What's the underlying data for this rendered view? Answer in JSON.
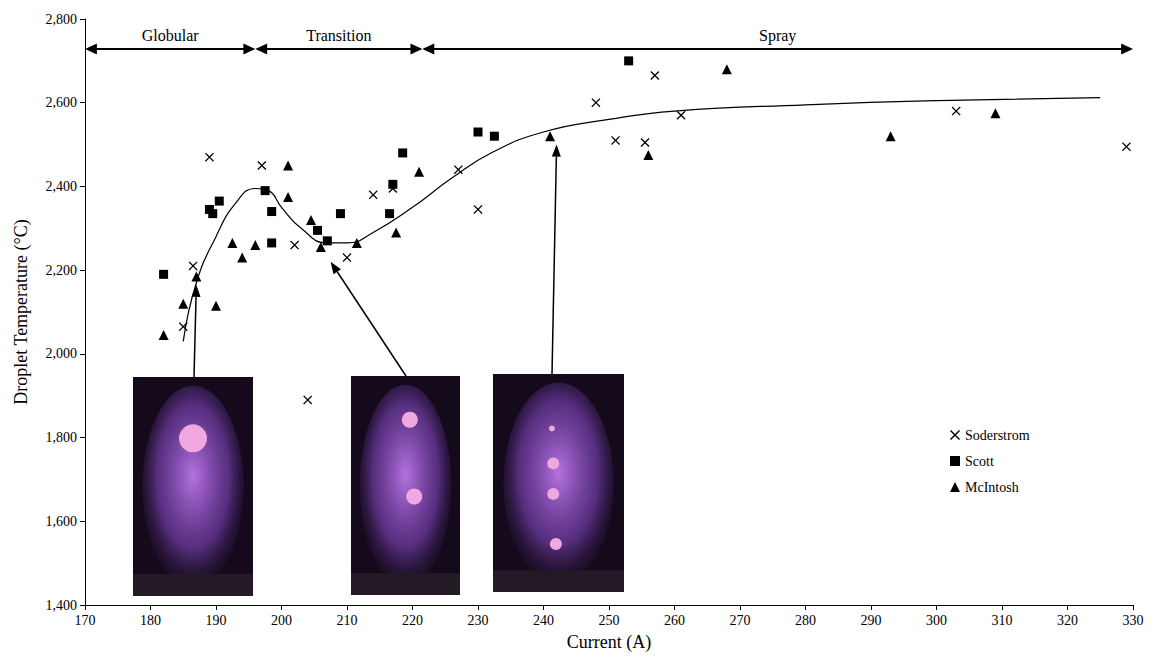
{
  "chart_data": {
    "type": "scatter",
    "x_label": "Current (A)",
    "y_label": "Droplet Temperature (°C)",
    "xlim": [
      170,
      330
    ],
    "xticks": [
      170,
      180,
      190,
      200,
      210,
      220,
      230,
      240,
      250,
      260,
      270,
      280,
      290,
      300,
      310,
      320,
      330
    ],
    "ylim": [
      1400,
      2800
    ],
    "yticks": [
      1400,
      1600,
      1800,
      2000,
      2200,
      2400,
      2600,
      2800
    ],
    "grid": false,
    "legend": "right",
    "series": [
      {
        "name": "Soderstrom",
        "type": "scatter",
        "marker": "x",
        "color": "#000000",
        "x": [
          185,
          186.5,
          189,
          197,
          202,
          204,
          210,
          214,
          217,
          227,
          230,
          248,
          251,
          255.5,
          257,
          261,
          303,
          329
        ],
        "values": [
          2065,
          2210,
          2470,
          2450,
          2260,
          1890,
          2230,
          2380,
          2395,
          2440,
          2345,
          2600,
          2510,
          2505,
          2665,
          2570,
          2580,
          2495
        ]
      },
      {
        "name": "Scott",
        "type": "scatter",
        "marker": "square",
        "color": "#000000",
        "x": [
          182,
          189,
          189.5,
          190.5,
          197.5,
          198.5,
          198.5,
          205.5,
          207,
          209,
          216.5,
          217,
          218.5,
          230,
          232.5,
          253
        ],
        "values": [
          2190,
          2345,
          2335,
          2365,
          2390,
          2340,
          2265,
          2295,
          2270,
          2335,
          2335,
          2405,
          2480,
          2530,
          2520,
          2700
        ]
      },
      {
        "name": "McIntosh",
        "type": "scatter",
        "marker": "triangle",
        "color": "#000000",
        "x": [
          182,
          185,
          187,
          190,
          192.5,
          194,
          196,
          201,
          201,
          204.5,
          206,
          211.5,
          217.5,
          221,
          241,
          256,
          268,
          293,
          309
        ],
        "values": [
          2045,
          2120,
          2185,
          2115,
          2265,
          2230,
          2260,
          2450,
          2375,
          2320,
          2255,
          2265,
          2290,
          2435,
          2520,
          2475,
          2680,
          2520,
          2575
        ]
      },
      {
        "type": "line",
        "line_style": "solid",
        "color": "#000000",
        "x": [
          185,
          187,
          190,
          193,
          196,
          198,
          200,
          203,
          207,
          210,
          214,
          220,
          226,
          232,
          240,
          250,
          260,
          280,
          300,
          325
        ],
        "values": [
          2030,
          2170,
          2280,
          2360,
          2395,
          2390,
          2350,
          2300,
          2265,
          2265,
          2290,
          2350,
          2420,
          2480,
          2530,
          2560,
          2580,
          2595,
          2605,
          2612
        ]
      }
    ],
    "regions": [
      {
        "label": "Globular",
        "from": 170,
        "to": 196
      },
      {
        "label": "Transition",
        "from": 196,
        "to": 221.5
      },
      {
        "label": "Spray",
        "from": 221.5,
        "to": 330
      }
    ],
    "pointers": [
      {
        "x": 187,
        "y": 2165
      },
      {
        "x": 207.5,
        "y": 2220
      },
      {
        "x": 242,
        "y": 2500
      }
    ]
  }
}
